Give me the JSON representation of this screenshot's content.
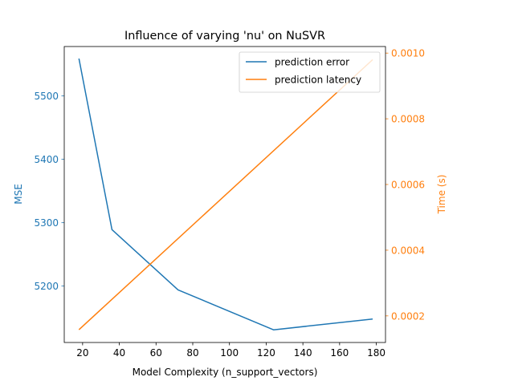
{
  "chart_data": {
    "type": "line",
    "title": "Influence of varying 'nu' on NuSVR",
    "xlabel": "Model Complexity (n_support_vectors)",
    "ylabel_left": "MSE",
    "ylabel_right": "Time (s)",
    "xlim": [
      10,
      185
    ],
    "ylim_left": [
      5111,
      5578
    ],
    "ylim_right": [
      0.000119,
      0.00102
    ],
    "x_ticks": [
      20,
      40,
      60,
      80,
      100,
      120,
      140,
      160,
      180
    ],
    "y_left_ticks": [
      5200,
      5300,
      5400,
      5500
    ],
    "y_right_ticks": [
      0.0002,
      0.0004,
      0.0006,
      0.0008,
      0.001
    ],
    "y_right_tick_labels": [
      "0.0002",
      "0.0004",
      "0.0006",
      "0.0008",
      "0.0010"
    ],
    "grid": false,
    "legend_position": "top-right",
    "series": [
      {
        "name": "prediction error",
        "axis": "left",
        "color": "#1f77b4",
        "x": [
          18,
          36,
          72,
          124,
          178
        ],
        "y": [
          5559,
          5289,
          5194,
          5131,
          5148
        ]
      },
      {
        "name": "prediction latency",
        "axis": "right",
        "color": "#ff7f0e",
        "x": [
          18,
          178
        ],
        "y": [
          0.000158,
          0.00098
        ]
      }
    ]
  }
}
